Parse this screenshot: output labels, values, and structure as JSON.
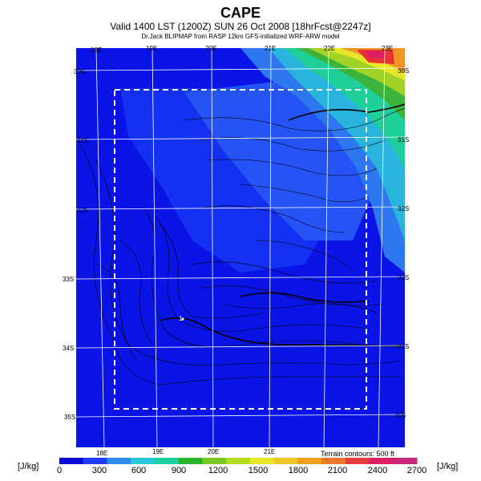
{
  "titles": {
    "main": "CAPE",
    "valid": "Valid 1400 LST (1200Z) SUN 26 Oct 2008 [18hrFcst@2247z]",
    "credit": "Dr.Jack BLIPMAP from RASP 12km GFS-initialized WRF-ARW model"
  },
  "map": {
    "lon_labels_top": [
      "18E",
      "19E",
      "20E",
      "21E",
      "22E",
      "23E"
    ],
    "lon_labels_bottom": [
      "18E",
      "19E",
      "20E",
      "21E"
    ],
    "lat_labels_right": [
      "30S",
      "31S",
      "32S",
      "33S",
      "34S",
      "35S"
    ],
    "lat_labels_left": [
      "30S",
      "31S",
      "32S",
      "33S",
      "34S",
      "35S"
    ],
    "marker_label": "1",
    "terrain_note": "Terrain contours: 500 ft"
  },
  "colorbar": {
    "unit_left": "[J/kg]",
    "unit_right": "[J/kg]",
    "ticks": [
      "0",
      "300",
      "600",
      "900",
      "1200",
      "1500",
      "1800",
      "2100",
      "2400",
      "2700"
    ],
    "colors": [
      "#0a0ad2",
      "#1e3cff",
      "#2d8cf0",
      "#28c8dc",
      "#1ecfa0",
      "#28b428",
      "#78c828",
      "#b4dc1e",
      "#e6e628",
      "#f0c828",
      "#f0a01e",
      "#f07828",
      "#e63c3c",
      "#dc1e64",
      "#c8287a"
    ]
  }
}
